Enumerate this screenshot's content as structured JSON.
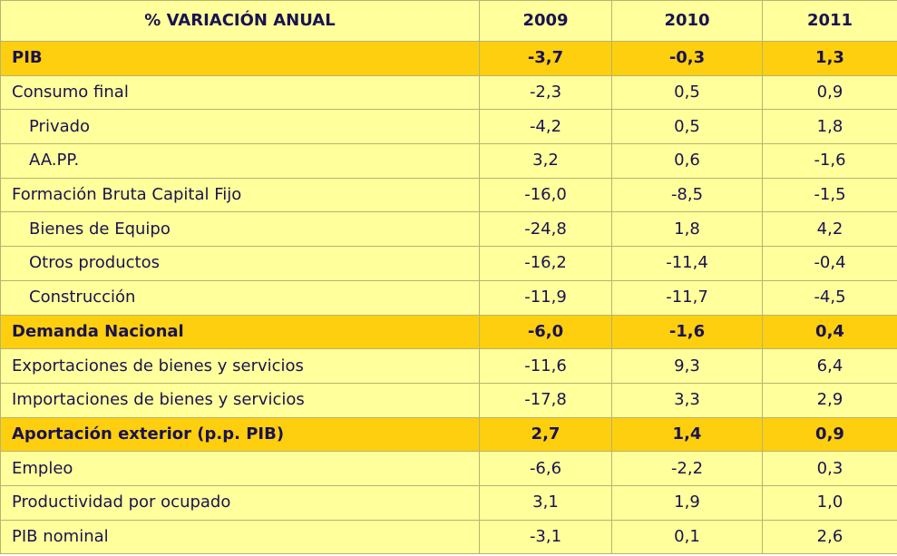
{
  "header": {
    "label": "% VARIACIÓN ANUAL",
    "years": [
      "2009",
      "2010",
      "2011"
    ]
  },
  "rows": [
    {
      "label": "PIB",
      "values": [
        "-3,7",
        "-0,3",
        "1,3"
      ]
    },
    {
      "label": "Consumo final",
      "values": [
        "-2,3",
        "0,5",
        "0,9"
      ]
    },
    {
      "label": "Privado",
      "values": [
        "-4,2",
        "0,5",
        "1,8"
      ]
    },
    {
      "label": "AA.PP.",
      "values": [
        "3,2",
        "0,6",
        "-1,6"
      ]
    },
    {
      "label": "Formación Bruta Capital Fijo",
      "values": [
        "-16,0",
        "-8,5",
        "-1,5"
      ]
    },
    {
      "label": "Bienes de Equipo",
      "values": [
        "-24,8",
        "1,8",
        "4,2"
      ]
    },
    {
      "label": "Otros productos",
      "values": [
        "-16,2",
        "-11,4",
        "-0,4"
      ]
    },
    {
      "label": "Construcción",
      "values": [
        "-11,9",
        "-11,7",
        "-4,5"
      ]
    },
    {
      "label": "Demanda Nacional",
      "values": [
        "-6,0",
        "-1,6",
        "0,4"
      ]
    },
    {
      "label": "Exportaciones de bienes y servicios",
      "values": [
        "-11,6",
        "9,3",
        "6,4"
      ]
    },
    {
      "label": "Importaciones de bienes y servicios",
      "values": [
        "-17,8",
        "3,3",
        "2,9"
      ]
    },
    {
      "label": "Aportación exterior (p.p. PIB)",
      "values": [
        "2,7",
        "1,4",
        "0,9"
      ]
    },
    {
      "label": "Empleo",
      "values": [
        "-6,6",
        "-2,2",
        "0,3"
      ]
    },
    {
      "label": "Productividad por ocupado",
      "values": [
        "3,1",
        "1,9",
        "1,0"
      ]
    },
    {
      "label": "PIB nominal",
      "values": [
        "-3,1",
        "0,1",
        "2,6"
      ]
    }
  ]
}
